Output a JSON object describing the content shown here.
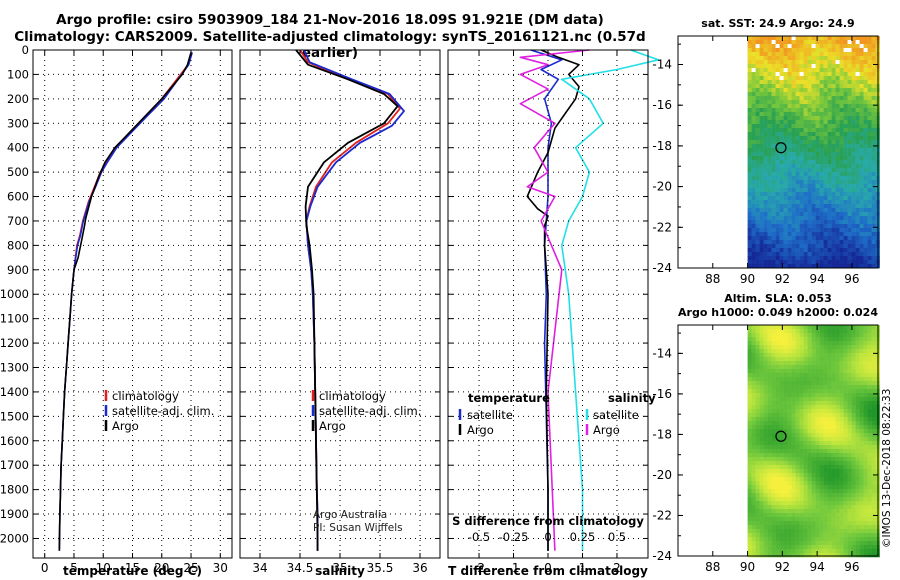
{
  "header": {
    "title_line1": "Argo profile: csiro 5903909_184 21-Nov-2016 18.09S 91.921E (DM data)",
    "title_line2": "Climatology: CARS2009. Satellite-adjusted climatology: synTS_20161121.nc (0.57d earlier)"
  },
  "colors": {
    "climatology": "#e02020",
    "satellite_adj": "#1a2ad0",
    "argo": "#000000",
    "sat_salinity": "#22e0e8",
    "argo_salinity": "#e020e0"
  },
  "credit": {
    "line1": "Argo Australia",
    "line2": "PI: Susan Wijffels"
  },
  "stamp": "©IMOS 13-Dec-2018 08:22:33",
  "chart_data": [
    {
      "type": "line",
      "name": "temperature",
      "xlabel": "temperature (deg C)",
      "ylabel": "",
      "xlim": [
        -2,
        32
      ],
      "ylim": [
        2080,
        0
      ],
      "xticks": [
        "0",
        "5",
        "10",
        "15",
        "20",
        "25",
        "30"
      ],
      "yticks": [
        "0",
        "100",
        "200",
        "300",
        "400",
        "500",
        "600",
        "700",
        "800",
        "900",
        "1000",
        "1100",
        "1200",
        "1300",
        "1400",
        "1500",
        "1600",
        "1700",
        "1800",
        "1900",
        "2000"
      ],
      "legend": [
        "climatology",
        "satellite-adj. clim.",
        "Argo"
      ],
      "legend_position": "middle-right",
      "series": [
        {
          "name": "climatology",
          "color_key": "climatology",
          "x": [
            25.1,
            24.5,
            20.0,
            16.0,
            12.0,
            10.5,
            9.5,
            8.5,
            7.5,
            6.5,
            6.0,
            5.5,
            5.0,
            4.6,
            4.3,
            4.0,
            3.7,
            3.4,
            3.2,
            3.0,
            2.8,
            2.7,
            2.6,
            2.5
          ],
          "y": [
            10,
            60,
            200,
            300,
            400,
            460,
            500,
            560,
            620,
            700,
            760,
            800,
            900,
            1000,
            1100,
            1200,
            1300,
            1400,
            1500,
            1600,
            1700,
            1800,
            1900,
            2050
          ]
        },
        {
          "name": "satellite-adj. clim.",
          "color_key": "satellite_adj",
          "x": [
            25.2,
            24.6,
            20.4,
            16.3,
            12.3,
            10.7,
            9.7,
            8.7,
            7.6,
            6.6,
            6.1,
            5.6,
            5.0,
            4.6,
            4.3,
            4.0,
            3.7,
            3.4,
            3.2,
            3.0,
            2.8,
            2.7,
            2.6,
            2.5
          ],
          "y": [
            10,
            60,
            200,
            300,
            400,
            460,
            500,
            560,
            620,
            700,
            760,
            800,
            900,
            1000,
            1100,
            1200,
            1300,
            1400,
            1500,
            1600,
            1700,
            1800,
            1900,
            2050
          ]
        },
        {
          "name": "Argo",
          "color_key": "argo",
          "x": [
            25.0,
            24.4,
            23.5,
            20.0,
            16.0,
            12.0,
            10.3,
            9.2,
            8.0,
            7.0,
            6.8,
            6.3,
            5.7,
            5.0,
            4.6,
            4.3,
            4.0,
            3.7,
            3.4,
            3.2,
            3.0,
            2.8,
            2.7,
            2.6,
            2.5
          ],
          "y": [
            10,
            60,
            100,
            200,
            300,
            400,
            460,
            520,
            600,
            690,
            720,
            780,
            850,
            900,
            1000,
            1100,
            1200,
            1300,
            1400,
            1500,
            1600,
            1700,
            1800,
            1900,
            2050
          ]
        }
      ]
    },
    {
      "type": "line",
      "name": "salinity",
      "xlabel": "salinity",
      "xlim": [
        33.75,
        36.25
      ],
      "ylim": [
        2080,
        0
      ],
      "xticks": [
        "34",
        "34.5",
        "35",
        "35.5",
        "36"
      ],
      "legend": [
        "climatology",
        "satellite-adj. clim.",
        "Argo"
      ],
      "legend_position": "middle-right",
      "series": [
        {
          "name": "climatology",
          "color_key": "climatology",
          "x": [
            34.5,
            34.6,
            35.1,
            35.6,
            35.75,
            35.6,
            35.2,
            34.9,
            34.7,
            34.62,
            34.58,
            34.6,
            34.64,
            34.66,
            34.68,
            34.69,
            34.7,
            34.71,
            34.72,
            34.72,
            34.72
          ],
          "y": [
            0,
            50,
            120,
            180,
            240,
            300,
            380,
            460,
            560,
            640,
            700,
            800,
            900,
            1000,
            1200,
            1400,
            1600,
            1800,
            1900,
            2000,
            2050
          ]
        },
        {
          "name": "satellite-adj. clim.",
          "color_key": "satellite_adj",
          "x": [
            34.55,
            34.62,
            35.15,
            35.62,
            35.8,
            35.65,
            35.25,
            34.95,
            34.72,
            34.63,
            34.58,
            34.6,
            34.64,
            34.66,
            34.68,
            34.69,
            34.7,
            34.71,
            34.72,
            34.72,
            34.72
          ],
          "y": [
            0,
            50,
            120,
            180,
            250,
            310,
            380,
            460,
            560,
            640,
            700,
            800,
            900,
            1000,
            1200,
            1400,
            1600,
            1800,
            1900,
            2000,
            2050
          ]
        },
        {
          "name": "Argo",
          "color_key": "argo",
          "x": [
            34.45,
            34.6,
            35.1,
            35.55,
            35.72,
            35.55,
            35.1,
            34.8,
            34.6,
            34.57,
            34.58,
            34.62,
            34.65,
            34.67,
            34.68,
            34.69,
            34.7,
            34.71,
            34.72,
            34.72
          ],
          "y": [
            0,
            60,
            120,
            180,
            230,
            300,
            380,
            460,
            560,
            640,
            720,
            800,
            900,
            1000,
            1200,
            1400,
            1600,
            1800,
            2000,
            2050
          ]
        }
      ]
    },
    {
      "type": "line",
      "name": "difference",
      "xlabel": "T difference from climatology",
      "xlabel2": "S difference from climatology",
      "xlim": [
        -2.9,
        2.9
      ],
      "ylim": [
        2080,
        0
      ],
      "xticks": [
        "-2",
        "-1",
        "0",
        "1",
        "2"
      ],
      "xticks2": [
        "-0.5",
        "-0.25",
        "0",
        "0.25",
        "0.5"
      ],
      "legend_temperature_title": "temperature",
      "legend_salinity_title": "salinity",
      "legend_labels": [
        "satellite",
        "Argo"
      ],
      "series": [
        {
          "name": "T satellite",
          "color_key": "satellite_adj",
          "x": [
            -0.5,
            0.4,
            -0.2,
            0.3,
            -0.1,
            0.1,
            0.0,
            0.0,
            -0.05,
            -0.1,
            -0.05,
            -0.1,
            -0.05,
            0.0,
            0.0
          ],
          "y": [
            0,
            40,
            80,
            120,
            200,
            300,
            400,
            600,
            700,
            800,
            1000,
            1200,
            1500,
            1800,
            2050
          ]
        },
        {
          "name": "T Argo",
          "color_key": "argo",
          "x": [
            -0.2,
            0.3,
            0.9,
            0.6,
            0.9,
            0.8,
            0.5,
            0.2,
            0.0,
            -0.3,
            -0.6,
            -0.3,
            0.0,
            -0.1,
            -0.1,
            0.0,
            -0.05,
            0.0,
            0.0
          ],
          "y": [
            0,
            30,
            60,
            100,
            150,
            200,
            260,
            320,
            420,
            500,
            600,
            650,
            680,
            720,
            800,
            1000,
            1400,
            1800,
            2050
          ]
        },
        {
          "name": "S satellite",
          "color_key": "sat_salinity",
          "x": [
            0.6,
            0.8,
            0.5,
            0.1,
            0.3,
            0.4,
            0.2,
            0.3,
            0.25,
            0.15,
            0.1,
            0.15,
            0.2,
            0.25,
            0.25
          ],
          "y": [
            0,
            40,
            80,
            120,
            200,
            300,
            400,
            500,
            600,
            700,
            800,
            1000,
            1400,
            1800,
            2050
          ]
        },
        {
          "name": "S Argo",
          "color_key": "argo_salinity",
          "x": [
            0.3,
            -0.2,
            0.0,
            -0.2,
            0.0,
            -0.2,
            0.05,
            -0.1,
            0.0,
            -0.15,
            0.05,
            -0.05,
            0.1,
            0.0,
            0.05
          ],
          "y": [
            0,
            30,
            60,
            100,
            160,
            220,
            300,
            400,
            500,
            560,
            600,
            700,
            900,
            1400,
            2050
          ]
        }
      ]
    },
    {
      "type": "heatmap",
      "name": "sst-map",
      "title": "sat. SST: 24.9 Argo: 24.9",
      "xlim": [
        86,
        97.5
      ],
      "ylim": [
        -24,
        -12.6
      ],
      "xticks": [
        "88",
        "90",
        "92",
        "94",
        "96"
      ],
      "yticks": [
        "-14",
        "-16",
        "-18",
        "-20",
        "-22",
        "-24"
      ],
      "data_lon_range": [
        90,
        97.5
      ],
      "argo_position": {
        "lon": 91.921,
        "lat": -18.09
      },
      "value_range": [
        22,
        27
      ],
      "description_values": "warm (orange/yellow) north of -16, green mid, blue south of -21"
    },
    {
      "type": "heatmap",
      "name": "sla-map",
      "title_line1": "Altim. SLA: 0.053",
      "title_line2": "Argo h1000: 0.049 h2000: 0.024",
      "xlim": [
        86,
        97.5
      ],
      "ylim": [
        -24,
        -12.6
      ],
      "xticks": [
        "88",
        "90",
        "92",
        "94",
        "96"
      ],
      "yticks": [
        "-14",
        "-16",
        "-18",
        "-20",
        "-22",
        "-24"
      ],
      "data_lon_range": [
        90,
        97.5
      ],
      "argo_position": {
        "lon": 91.921,
        "lat": -18.09
      }
    }
  ]
}
